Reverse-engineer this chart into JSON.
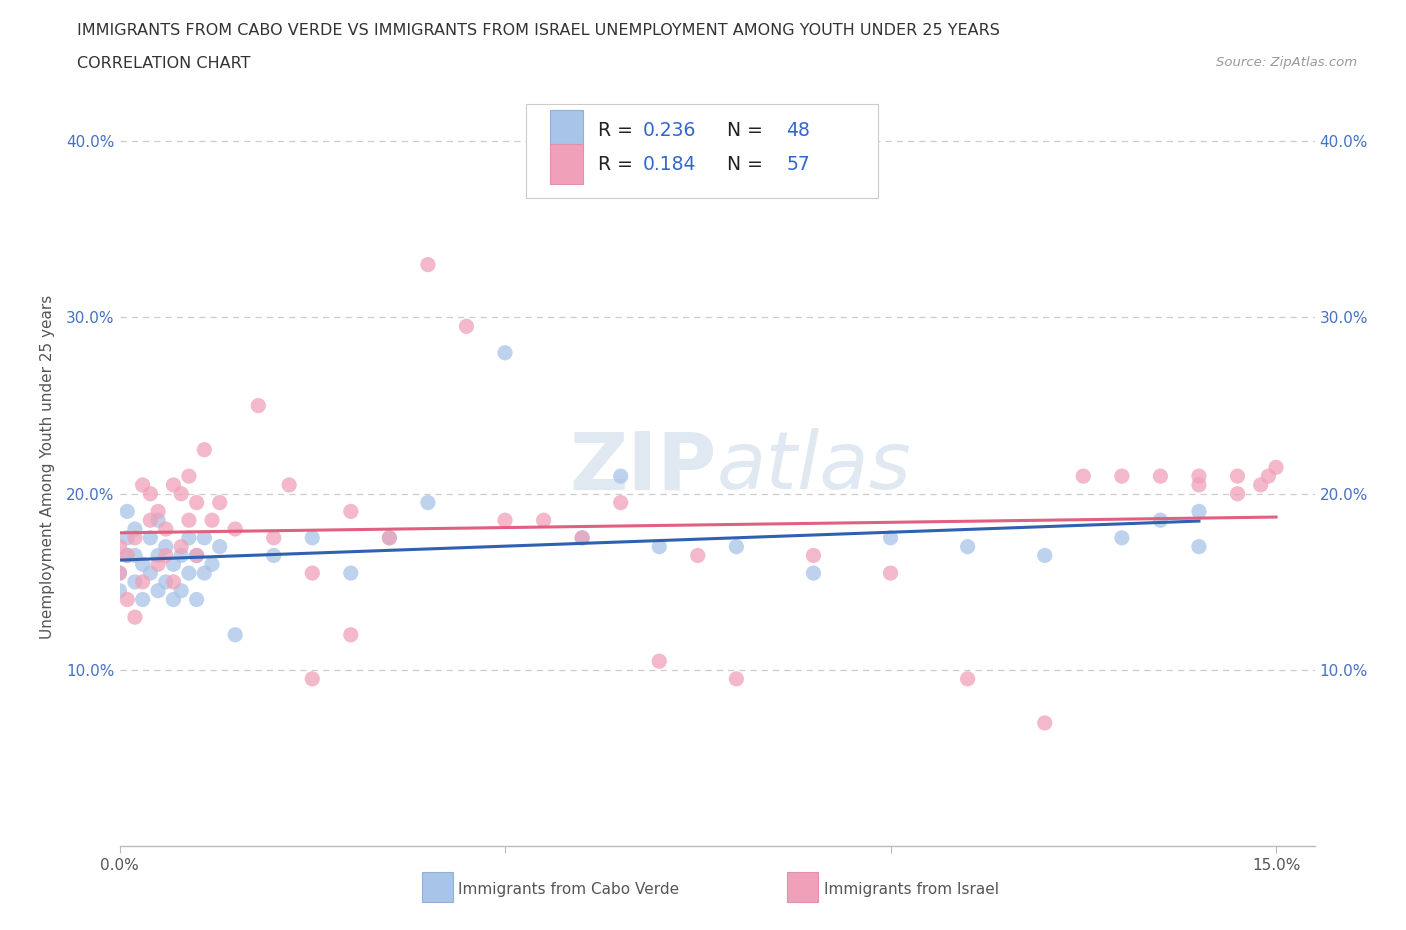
{
  "title_line1": "IMMIGRANTS FROM CABO VERDE VS IMMIGRANTS FROM ISRAEL UNEMPLOYMENT AMONG YOUTH UNDER 25 YEARS",
  "title_line2": "CORRELATION CHART",
  "source": "Source: ZipAtlas.com",
  "ylabel": "Unemployment Among Youth under 25 years",
  "xlim": [
    0.0,
    0.155
  ],
  "ylim": [
    0.0,
    0.43
  ],
  "xticks": [
    0.0,
    0.05,
    0.1,
    0.15
  ],
  "yticks": [
    0.0,
    0.1,
    0.2,
    0.3,
    0.4
  ],
  "watermark": "ZIPatlas",
  "cabo_verde_color": "#a8c4e8",
  "israel_color": "#f0a0b8",
  "cabo_verde_line_color": "#3060b0",
  "israel_line_color": "#e06080",
  "background_color": "#ffffff",
  "grid_color": "#cccccc",
  "cabo_verde_x": [
    0.0,
    0.0,
    0.001,
    0.001,
    0.001,
    0.002,
    0.002,
    0.002,
    0.003,
    0.003,
    0.004,
    0.004,
    0.005,
    0.005,
    0.005,
    0.006,
    0.006,
    0.007,
    0.007,
    0.008,
    0.008,
    0.009,
    0.009,
    0.01,
    0.01,
    0.011,
    0.011,
    0.012,
    0.013,
    0.015,
    0.02,
    0.025,
    0.03,
    0.035,
    0.04,
    0.05,
    0.06,
    0.065,
    0.07,
    0.08,
    0.09,
    0.1,
    0.11,
    0.12,
    0.13,
    0.135,
    0.14,
    0.14
  ],
  "cabo_verde_y": [
    0.155,
    0.145,
    0.165,
    0.175,
    0.19,
    0.15,
    0.165,
    0.18,
    0.14,
    0.16,
    0.155,
    0.175,
    0.145,
    0.165,
    0.185,
    0.15,
    0.17,
    0.14,
    0.16,
    0.145,
    0.165,
    0.155,
    0.175,
    0.14,
    0.165,
    0.155,
    0.175,
    0.16,
    0.17,
    0.12,
    0.165,
    0.175,
    0.155,
    0.175,
    0.195,
    0.28,
    0.175,
    0.21,
    0.17,
    0.17,
    0.155,
    0.175,
    0.17,
    0.165,
    0.175,
    0.185,
    0.17,
    0.19
  ],
  "israel_x": [
    0.0,
    0.0,
    0.001,
    0.001,
    0.002,
    0.002,
    0.003,
    0.003,
    0.004,
    0.004,
    0.005,
    0.005,
    0.006,
    0.006,
    0.007,
    0.007,
    0.008,
    0.008,
    0.009,
    0.009,
    0.01,
    0.01,
    0.011,
    0.012,
    0.013,
    0.015,
    0.018,
    0.02,
    0.022,
    0.025,
    0.025,
    0.03,
    0.03,
    0.035,
    0.04,
    0.045,
    0.05,
    0.055,
    0.06,
    0.065,
    0.07,
    0.075,
    0.08,
    0.09,
    0.1,
    0.11,
    0.12,
    0.125,
    0.13,
    0.135,
    0.14,
    0.14,
    0.145,
    0.145,
    0.148,
    0.149,
    0.15
  ],
  "israel_y": [
    0.155,
    0.17,
    0.14,
    0.165,
    0.13,
    0.175,
    0.15,
    0.205,
    0.185,
    0.2,
    0.16,
    0.19,
    0.165,
    0.18,
    0.15,
    0.205,
    0.17,
    0.2,
    0.185,
    0.21,
    0.165,
    0.195,
    0.225,
    0.185,
    0.195,
    0.18,
    0.25,
    0.175,
    0.205,
    0.155,
    0.095,
    0.19,
    0.12,
    0.175,
    0.33,
    0.295,
    0.185,
    0.185,
    0.175,
    0.195,
    0.105,
    0.165,
    0.095,
    0.165,
    0.155,
    0.095,
    0.07,
    0.21,
    0.21,
    0.21,
    0.21,
    0.205,
    0.21,
    0.2,
    0.205,
    0.21,
    0.215
  ],
  "legend_cabo_label": "R = 0.236   N = 48",
  "legend_israel_label": "R = 0.184   N = 57",
  "bottom_legend_cabo": "Immigrants from Cabo Verde",
  "bottom_legend_israel": "Immigrants from Israel"
}
